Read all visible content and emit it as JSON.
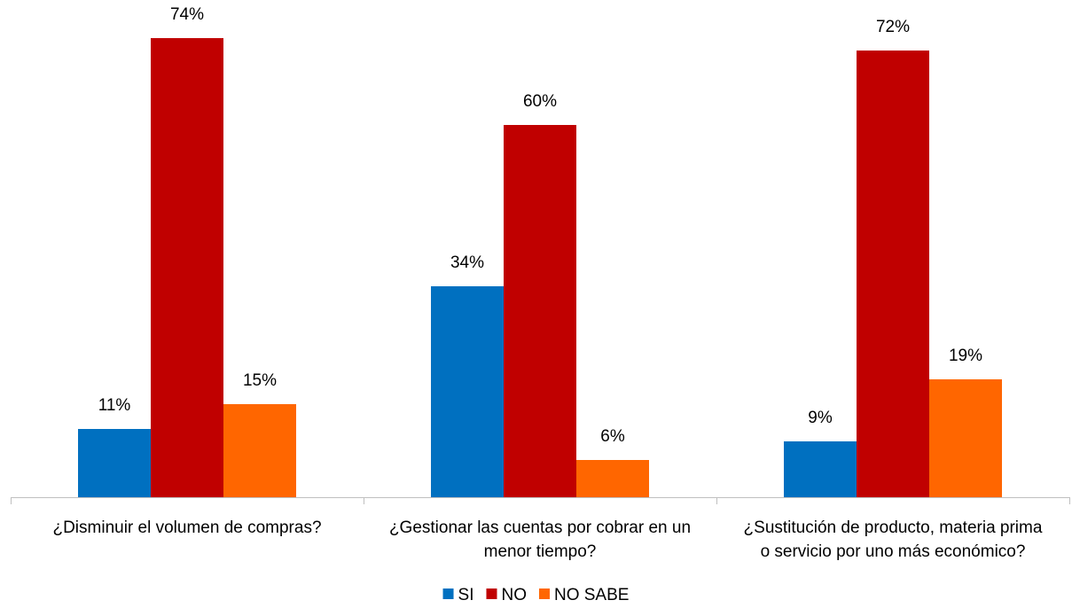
{
  "chart_data": {
    "type": "bar",
    "categories": [
      [
        "¿Disminuir el volumen de compras?"
      ],
      [
        "¿Gestionar las cuentas por cobrar en un",
        "menor tiempo?"
      ],
      [
        "¿Sustitución de producto, materia prima",
        "o servicio por uno más económico?"
      ]
    ],
    "series": [
      {
        "name": "SI",
        "color": "#0070C0",
        "values": [
          11,
          34,
          9
        ],
        "labels": [
          "11%",
          "34%",
          "9%"
        ]
      },
      {
        "name": "NO",
        "color": "#C00000",
        "values": [
          74,
          60,
          72
        ],
        "labels": [
          "74%",
          "60%",
          "72%"
        ]
      },
      {
        "name": "NO SABE",
        "color": "#FF6600",
        "values": [
          15,
          6,
          19
        ],
        "labels": [
          "15%",
          "6%",
          "19%"
        ]
      }
    ],
    "ylim": [
      0,
      80
    ],
    "y_axis_visible": false,
    "grid": false,
    "legend_position": "bottom"
  }
}
